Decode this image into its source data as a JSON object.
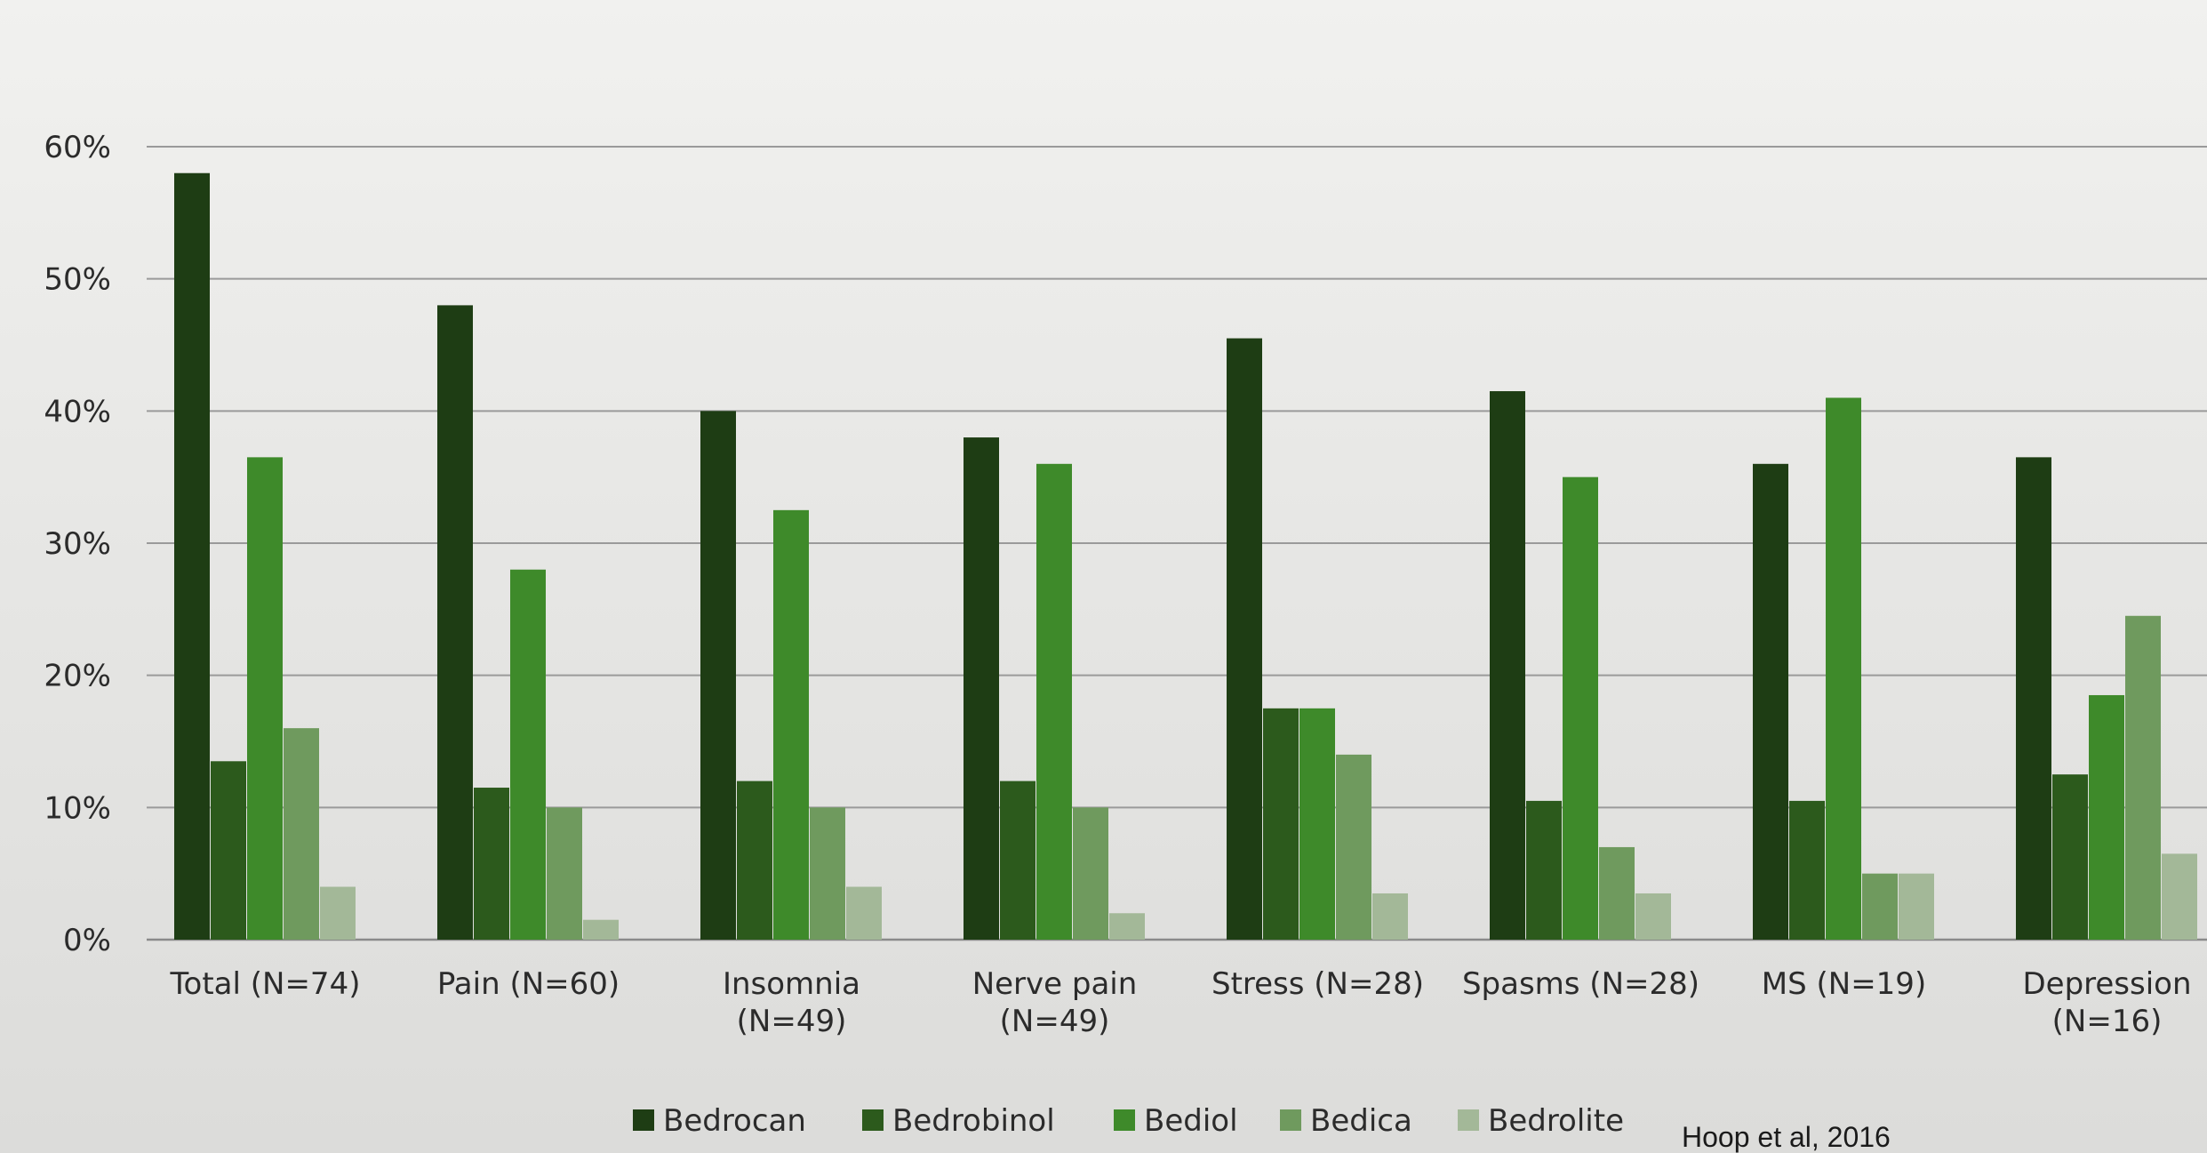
{
  "chart_data": {
    "type": "bar",
    "categories": [
      [
        "Total (N=74)"
      ],
      [
        "Pain (N=60)"
      ],
      [
        "Insomnia",
        "(N=49)"
      ],
      [
        "Nerve pain",
        "(N=49)"
      ],
      [
        "Stress (N=28)"
      ],
      [
        "Spasms (N=28)"
      ],
      [
        "MS (N=19)"
      ],
      [
        "Depression",
        "(N=16)"
      ]
    ],
    "series": [
      {
        "name": "Bedrocan",
        "color": "#1e3d14",
        "values": [
          58,
          48,
          40,
          38,
          45.5,
          41.5,
          36,
          36.5
        ]
      },
      {
        "name": "Bedrobinol",
        "color": "#2c5a1c",
        "values": [
          13.5,
          11.5,
          12,
          12,
          17.5,
          10.5,
          10.5,
          12.5
        ]
      },
      {
        "name": "Bediol",
        "color": "#3e8a2a",
        "values": [
          36.5,
          28,
          32.5,
          36,
          17.5,
          35,
          41,
          18.5
        ]
      },
      {
        "name": "Bedica",
        "color": "#6f9a5e",
        "values": [
          16,
          10,
          10,
          10,
          14,
          7,
          5,
          24.5
        ]
      },
      {
        "name": "Bedrolite",
        "color": "#a3b898",
        "values": [
          4,
          1.5,
          4,
          2,
          3.5,
          3.5,
          5,
          6.5
        ]
      }
    ],
    "yticks": [
      "0%",
      "10%",
      "20%",
      "30%",
      "40%",
      "50%",
      "60%"
    ],
    "ylim": [
      0,
      60
    ],
    "grid": true,
    "legend": "bottom",
    "source": "Hoop et al, 2016"
  }
}
